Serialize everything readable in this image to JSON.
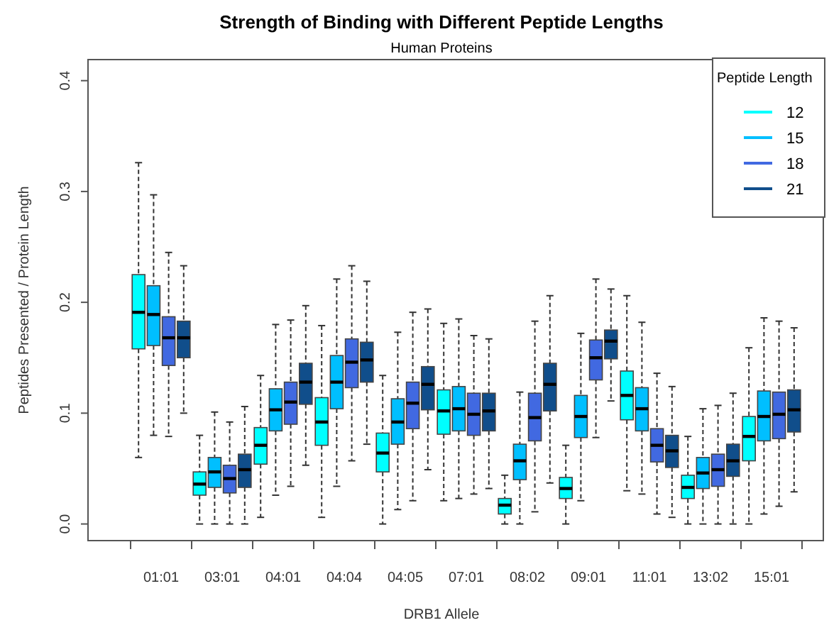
{
  "chart_data": {
    "type": "box",
    "title": "Strength of Binding with Different Peptide Lengths",
    "subtitle": "Human Proteins",
    "xlabel": "DRB1 Allele",
    "ylabel": "Peptides Presented / Protein Length",
    "legend_title": "Peptide Length",
    "legend": "top right",
    "grid": false,
    "categories": [
      "01:01",
      "03:01",
      "04:01",
      "04:04",
      "04:05",
      "07:01",
      "08:02",
      "09:01",
      "11:01",
      "13:02",
      "15:01"
    ],
    "ylim": [
      -0.015,
      0.419
    ],
    "yticks": [
      {
        "value": 0,
        "label": "0.0"
      },
      0.1,
      0.2,
      0.3,
      0.4
    ],
    "series": [
      {
        "name": "12",
        "color": "#00ffff",
        "boxes": [
          {
            "low": 0.06,
            "q1": 0.158,
            "median": 0.191,
            "q3": 0.225,
            "high": 0.326
          },
          {
            "low": 0,
            "q1": 0.026,
            "median": 0.036,
            "q3": 0.047,
            "high": 0.08
          },
          {
            "low": 0.006,
            "q1": 0.054,
            "median": 0.071,
            "q3": 0.087,
            "high": 0.134
          },
          {
            "low": 0.006,
            "q1": 0.071,
            "median": 0.092,
            "q3": 0.114,
            "high": 0.179
          },
          {
            "low": 0,
            "q1": 0.047,
            "median": 0.064,
            "q3": 0.082,
            "high": 0.134
          },
          {
            "low": 0.021,
            "q1": 0.081,
            "median": 0.102,
            "q3": 0.121,
            "high": 0.181
          },
          {
            "low": 0,
            "q1": 0.009,
            "median": 0.017,
            "q3": 0.023,
            "high": 0.044
          },
          {
            "low": 0,
            "q1": 0.023,
            "median": 0.032,
            "q3": 0.042,
            "high": 0.071
          },
          {
            "low": 0.03,
            "q1": 0.094,
            "median": 0.116,
            "q3": 0.138,
            "high": 0.206
          },
          {
            "low": 0,
            "q1": 0.023,
            "median": 0.033,
            "q3": 0.044,
            "high": 0.079
          },
          {
            "low": 0,
            "q1": 0.057,
            "median": 0.079,
            "q3": 0.097,
            "high": 0.159
          }
        ]
      },
      {
        "name": "15",
        "color": "#00bfff",
        "boxes": [
          {
            "low": 0.08,
            "q1": 0.161,
            "median": 0.189,
            "q3": 0.215,
            "high": 0.297
          },
          {
            "low": 0,
            "q1": 0.033,
            "median": 0.047,
            "q3": 0.06,
            "high": 0.101
          },
          {
            "low": 0.026,
            "q1": 0.084,
            "median": 0.103,
            "q3": 0.122,
            "high": 0.18
          },
          {
            "low": 0.034,
            "q1": 0.104,
            "median": 0.128,
            "q3": 0.152,
            "high": 0.221
          },
          {
            "low": 0.013,
            "q1": 0.072,
            "median": 0.092,
            "q3": 0.113,
            "high": 0.173
          },
          {
            "low": 0.023,
            "q1": 0.084,
            "median": 0.104,
            "q3": 0.124,
            "high": 0.185
          },
          {
            "low": 0,
            "q1": 0.04,
            "median": 0.057,
            "q3": 0.072,
            "high": 0.119
          },
          {
            "low": 0.021,
            "q1": 0.078,
            "median": 0.097,
            "q3": 0.116,
            "high": 0.172
          },
          {
            "low": 0.027,
            "q1": 0.084,
            "median": 0.104,
            "q3": 0.123,
            "high": 0.182
          },
          {
            "low": 0,
            "q1": 0.032,
            "median": 0.046,
            "q3": 0.06,
            "high": 0.104
          },
          {
            "low": 0.009,
            "q1": 0.075,
            "median": 0.097,
            "q3": 0.12,
            "high": 0.186
          }
        ]
      },
      {
        "name": "18",
        "color": "#4169e1",
        "boxes": [
          {
            "low": 0.079,
            "q1": 0.143,
            "median": 0.168,
            "q3": 0.187,
            "high": 0.245
          },
          {
            "low": 0,
            "q1": 0.028,
            "median": 0.041,
            "q3": 0.053,
            "high": 0.092
          },
          {
            "low": 0.034,
            "q1": 0.09,
            "median": 0.11,
            "q3": 0.128,
            "high": 0.184
          },
          {
            "low": 0.057,
            "q1": 0.123,
            "median": 0.146,
            "q3": 0.167,
            "high": 0.233
          },
          {
            "low": 0.021,
            "q1": 0.086,
            "median": 0.109,
            "q3": 0.128,
            "high": 0.191
          },
          {
            "low": 0.027,
            "q1": 0.08,
            "median": 0.099,
            "q3": 0.118,
            "high": 0.17
          },
          {
            "low": 0.011,
            "q1": 0.075,
            "median": 0.096,
            "q3": 0.118,
            "high": 0.183
          },
          {
            "low": 0.078,
            "q1": 0.13,
            "median": 0.15,
            "q3": 0.166,
            "high": 0.221
          },
          {
            "low": 0.009,
            "q1": 0.056,
            "median": 0.071,
            "q3": 0.086,
            "high": 0.136
          },
          {
            "low": 0,
            "q1": 0.034,
            "median": 0.049,
            "q3": 0.063,
            "high": 0.107
          },
          {
            "low": 0.016,
            "q1": 0.077,
            "median": 0.099,
            "q3": 0.119,
            "high": 0.183
          }
        ]
      },
      {
        "name": "21",
        "color": "#104e8b",
        "boxes": [
          {
            "low": 0.1,
            "q1": 0.15,
            "median": 0.168,
            "q3": 0.183,
            "high": 0.233
          },
          {
            "low": 0,
            "q1": 0.033,
            "median": 0.049,
            "q3": 0.063,
            "high": 0.106
          },
          {
            "low": 0.053,
            "q1": 0.108,
            "median": 0.128,
            "q3": 0.145,
            "high": 0.197
          },
          {
            "low": 0.072,
            "q1": 0.128,
            "median": 0.148,
            "q3": 0.164,
            "high": 0.219
          },
          {
            "low": 0.049,
            "q1": 0.103,
            "median": 0.126,
            "q3": 0.142,
            "high": 0.194
          },
          {
            "low": 0.032,
            "q1": 0.084,
            "median": 0.102,
            "q3": 0.118,
            "high": 0.167
          },
          {
            "low": 0.037,
            "q1": 0.102,
            "median": 0.126,
            "q3": 0.145,
            "high": 0.206
          },
          {
            "low": 0.111,
            "q1": 0.149,
            "median": 0.165,
            "q3": 0.175,
            "high": 0.212
          },
          {
            "low": 0.006,
            "q1": 0.051,
            "median": 0.066,
            "q3": 0.08,
            "high": 0.124
          },
          {
            "low": 0,
            "q1": 0.043,
            "median": 0.057,
            "q3": 0.072,
            "high": 0.118
          },
          {
            "low": 0.029,
            "q1": 0.083,
            "median": 0.103,
            "q3": 0.121,
            "high": 0.177
          }
        ]
      }
    ]
  }
}
